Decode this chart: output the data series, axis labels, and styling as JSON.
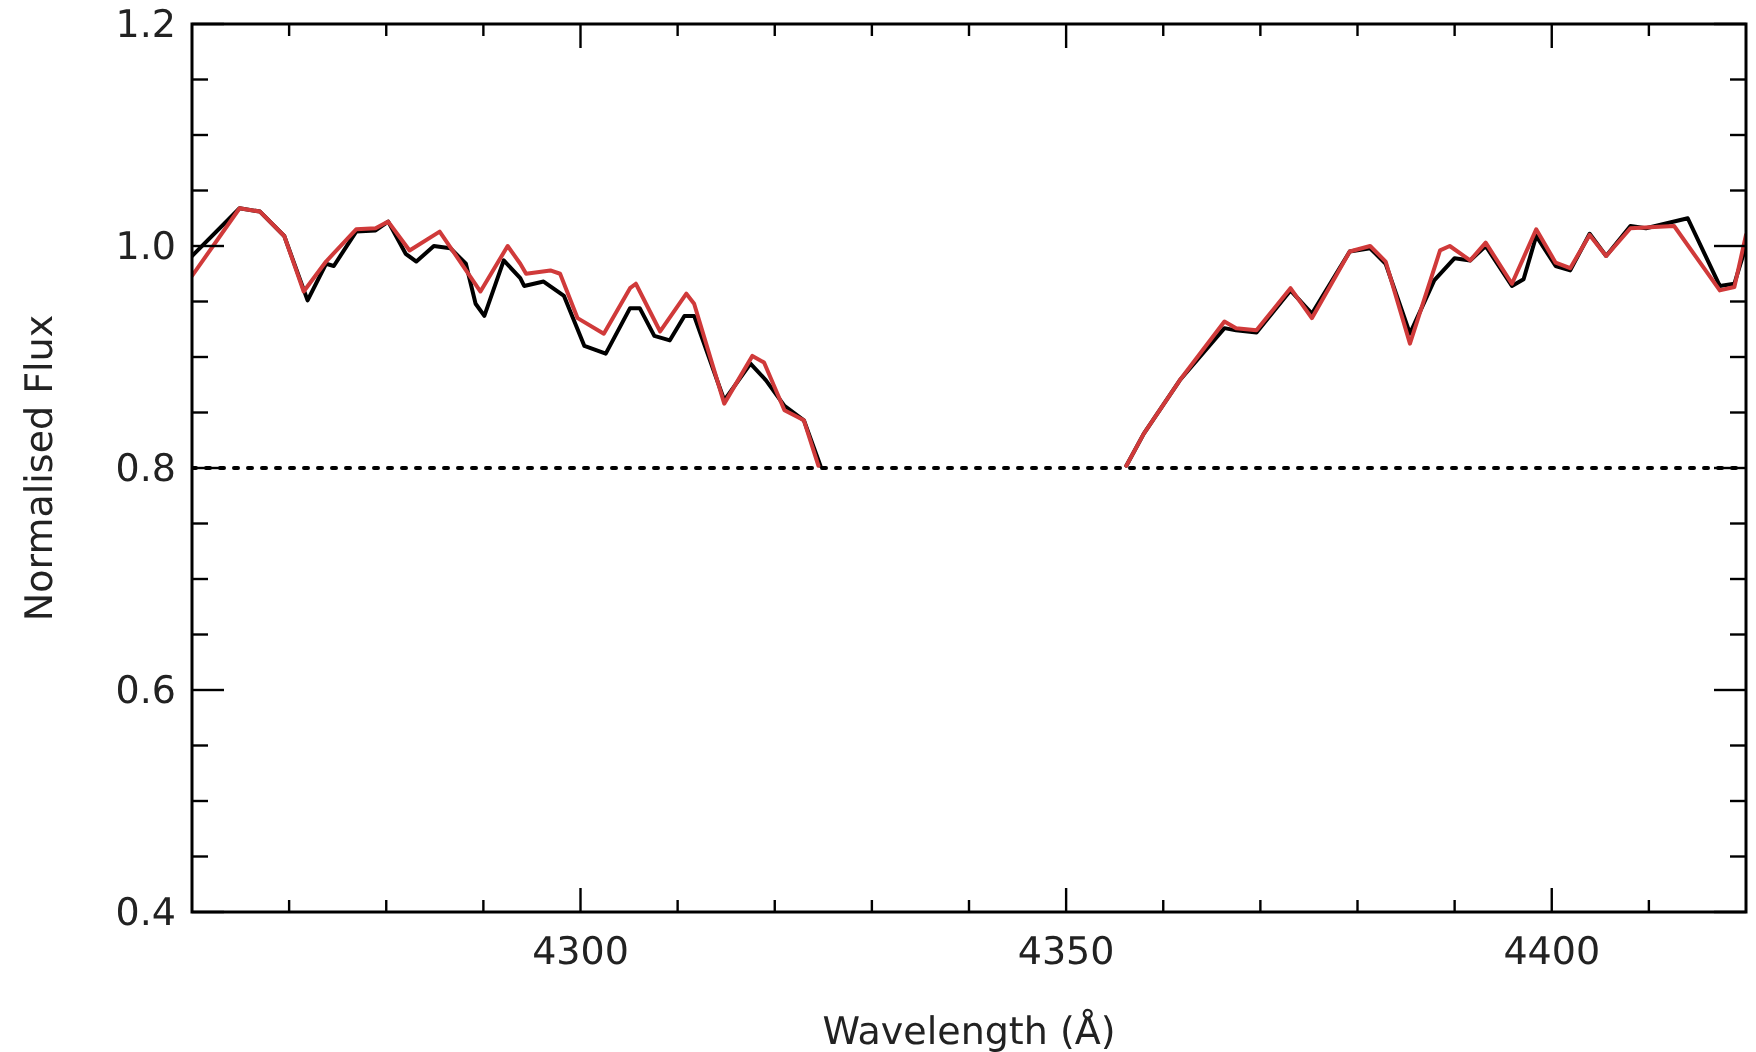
{
  "chart_data": {
    "type": "line",
    "xlabel": "Wavelength (Å)",
    "ylabel": "Normalised Flux",
    "xlim": [
      4260,
      4420
    ],
    "ylim": [
      0.4,
      1.2
    ],
    "xticks": [
      {
        "value": 4270,
        "label": null
      },
      {
        "value": 4280,
        "label": null
      },
      {
        "value": 4290,
        "label": null
      },
      4300,
      {
        "value": 4310,
        "label": null
      },
      {
        "value": 4320,
        "label": null
      },
      {
        "value": 4330,
        "label": null
      },
      {
        "value": 4340,
        "label": null
      },
      4350,
      {
        "value": 4360,
        "label": null
      },
      {
        "value": 4370,
        "label": null
      },
      {
        "value": 4380,
        "label": null
      },
      {
        "value": 4390,
        "label": null
      },
      4400,
      {
        "value": 4410,
        "label": null
      }
    ],
    "yticks": [
      0.4,
      {
        "value": 0.45,
        "label": null
      },
      {
        "value": 0.5,
        "label": null
      },
      {
        "value": 0.55,
        "label": null
      },
      0.6,
      {
        "value": 0.65,
        "label": null
      },
      {
        "value": 0.7,
        "label": null
      },
      {
        "value": 0.75,
        "label": null
      },
      0.8,
      {
        "value": 0.85,
        "label": null
      },
      {
        "value": 0.9,
        "label": null
      },
      {
        "value": 0.95,
        "label": null
      },
      {
        "value": 1,
        "label": "1.0"
      },
      {
        "value": 1.05,
        "label": null
      },
      {
        "value": 1.1,
        "label": null
      },
      {
        "value": 1.15,
        "label": null
      },
      1.2
    ],
    "grid": false,
    "line_style": "solid",
    "marker": "none",
    "ref_lines": [
      {
        "axis": "y",
        "value": 0.8,
        "color": "#000000",
        "line_style": "dotted"
      }
    ],
    "series": [
      {
        "color": "#000000",
        "x": [
          4260,
          4264.9,
          4267,
          4269.5,
          4271.9,
          4273.8,
          4274.6,
          4276.9,
          4278.9,
          4280.2,
          4282,
          4283.1,
          4284.9,
          4286.6,
          4288.2,
          4289.2,
          4290.1,
          4292.1,
          4293.8,
          4294.2,
          4296.2,
          4298.3,
          4300.4,
          4302.6,
          4305.1,
          4306.1,
          4307.6,
          4309.2,
          4310.7,
          4311.7,
          4314.8,
          4317.5,
          4319.1,
          4321,
          4323,
          4324.7,
          null,
          4356.2,
          4358,
          4361.7,
          4366.3,
          4367.5,
          4369.6,
          4373.1,
          4375.3,
          4379.2,
          4381.3,
          4382.9,
          4385.4,
          4387.9,
          4390,
          4391.6,
          4393.2,
          4395.9,
          4397.1,
          4398.4,
          4400.4,
          4401.9,
          4403.9,
          4405.6,
          4408.1,
          4409.7,
          4414,
          4417.3,
          4418.8,
          4420
        ],
        "values": [
          0.991,
          1.034,
          1.031,
          1.009,
          0.951,
          0.984,
          0.982,
          1.013,
          1.014,
          1.022,
          0.993,
          0.986,
          1.0,
          0.998,
          0.984,
          0.948,
          0.937,
          0.987,
          0.971,
          0.964,
          0.968,
          0.955,
          0.91,
          0.903,
          0.944,
          0.944,
          0.919,
          0.915,
          0.937,
          0.937,
          0.861,
          0.894,
          0.879,
          0.856,
          0.843,
          0.802,
          null,
          0.802,
          0.831,
          0.879,
          0.926,
          0.924,
          0.922,
          0.96,
          0.939,
          0.995,
          0.998,
          0.984,
          0.921,
          0.969,
          0.989,
          0.987,
          1.0,
          0.964,
          0.97,
          1.009,
          0.982,
          0.978,
          1.011,
          0.991,
          1.018,
          1.016,
          1.025,
          0.964,
          0.966,
          1.0
        ]
      },
      {
        "color": "#d03a3a",
        "x": [
          4260,
          4264.9,
          4267,
          4269.5,
          4271.5,
          4273.8,
          4276.9,
          4278.9,
          4280.2,
          4282.4,
          4285.5,
          4289.7,
          4292.5,
          4293.8,
          4294.4,
          4296.9,
          4297.9,
          4299.7,
          4302.4,
          4305.1,
          4305.7,
          4308.2,
          4310.9,
          4311.7,
          4314.8,
          4317.7,
          4318.9,
          4321,
          4323,
          4324.5,
          null,
          4356.2,
          4358,
          4361.7,
          4366.3,
          4367.5,
          4369.6,
          4373.1,
          4375.3,
          4379.2,
          4381.3,
          4382.9,
          4385.4,
          4388.5,
          4389.5,
          4391.6,
          4393.2,
          4395.9,
          4398.4,
          4400.4,
          4401.9,
          4403.9,
          4405.6,
          4408.1,
          4412.6,
          4417.3,
          4418.8,
          4420
        ],
        "values": [
          0.973,
          1.034,
          1.031,
          1.009,
          0.959,
          0.986,
          1.015,
          1.016,
          1.022,
          0.996,
          1.013,
          0.959,
          1.0,
          0.984,
          0.975,
          0.978,
          0.975,
          0.935,
          0.921,
          0.962,
          0.966,
          0.923,
          0.957,
          0.948,
          0.858,
          0.901,
          0.895,
          0.852,
          0.843,
          0.802,
          null,
          0.802,
          0.831,
          0.879,
          0.932,
          0.926,
          0.924,
          0.962,
          0.935,
          0.995,
          1.0,
          0.986,
          0.912,
          0.996,
          1.0,
          0.987,
          1.003,
          0.966,
          1.015,
          0.985,
          0.98,
          1.01,
          0.991,
          1.016,
          1.018,
          0.96,
          0.963,
          1.01
        ]
      }
    ]
  }
}
